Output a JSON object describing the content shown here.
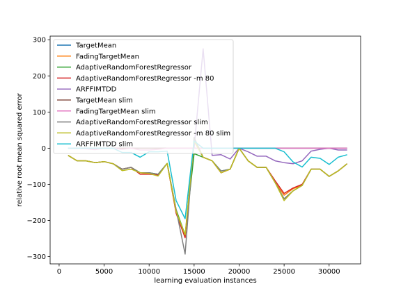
{
  "chart_data": {
    "type": "line",
    "title": "",
    "xlabel": "learning evaluation instances",
    "ylabel": "relative root mean squared error",
    "xlim": [
      -1000,
      33500
    ],
    "ylim": [
      -320,
      310
    ],
    "xticks": [
      0,
      5000,
      10000,
      15000,
      20000,
      25000,
      30000
    ],
    "yticks": [
      -300,
      -200,
      -100,
      0,
      100,
      200,
      300
    ],
    "grid": false,
    "legend_position": "top-left",
    "x": [
      1000,
      2000,
      3000,
      4000,
      5000,
      6000,
      7000,
      8000,
      9000,
      10000,
      11000,
      12000,
      13000,
      14000,
      15000,
      16000,
      17000,
      18000,
      19000,
      20000,
      21000,
      22000,
      23000,
      24000,
      25000,
      26000,
      27000,
      28000,
      29000,
      30000,
      31000,
      32000
    ],
    "series": [
      {
        "name": "TargetMean",
        "color": "#1f77b4",
        "values": [
          0,
          0,
          0,
          0,
          0,
          0,
          0,
          0,
          0,
          0,
          0,
          0,
          0,
          0,
          0,
          0,
          0,
          0,
          0,
          0,
          0,
          0,
          0,
          0,
          0,
          0,
          0,
          0,
          0,
          0,
          0,
          0
        ]
      },
      {
        "name": "FadingTargetMean",
        "color": "#ff7f0e",
        "values": [
          -20,
          -35,
          -35,
          -40,
          -37,
          -43,
          -58,
          -53,
          -68,
          -70,
          -74,
          -42,
          -175,
          -245,
          20,
          -25,
          -35,
          -68,
          -58,
          0,
          -35,
          -53,
          -53,
          -95,
          -130,
          -112,
          -103,
          -58,
          -58,
          -78,
          -63,
          -43
        ]
      },
      {
        "name": "AdaptiveRandomForestRegressor",
        "color": "#2ca02c",
        "values": [
          -20,
          -35,
          -35,
          -40,
          -37,
          -43,
          -58,
          -53,
          -68,
          -68,
          -72,
          -42,
          -170,
          -240,
          -15,
          -25,
          -35,
          -63,
          -58,
          0,
          -35,
          -53,
          -53,
          -95,
          -140,
          -118,
          -103,
          -58,
          -58,
          -78,
          -63,
          -43
        ]
      },
      {
        "name": "AdaptiveRandomForestRegressor -m 80",
        "color": "#d62728",
        "values": [
          -20,
          -35,
          -35,
          -40,
          -37,
          -43,
          -58,
          -53,
          -72,
          -72,
          -74,
          -42,
          -180,
          -248,
          20,
          -25,
          -35,
          -68,
          -58,
          0,
          -35,
          -53,
          -53,
          -90,
          -125,
          -110,
          -100,
          -58,
          -58,
          -78,
          -63,
          -43
        ]
      },
      {
        "name": "ARFFIMTDD",
        "color": "#9467bd",
        "values": [
          0,
          0,
          0,
          0,
          0,
          0,
          0,
          0,
          0,
          0,
          0,
          0,
          0,
          0,
          0,
          275,
          -20,
          -18,
          -30,
          0,
          -10,
          -22,
          -22,
          -35,
          -40,
          -43,
          -35,
          -8,
          -3,
          0,
          -5,
          -5
        ]
      },
      {
        "name": "TargetMean slim",
        "color": "#8c564b",
        "values": [
          0,
          0,
          0,
          0,
          0,
          0,
          0,
          0,
          0,
          0,
          0,
          0,
          0,
          0,
          0,
          0,
          0,
          0,
          0,
          0,
          0,
          0,
          0,
          0,
          0,
          0,
          0,
          0,
          0,
          0,
          0,
          0
        ]
      },
      {
        "name": "FadingTargetMean slim",
        "color": "#e377c2",
        "values": [
          0,
          0,
          -2,
          -4,
          0,
          0,
          -3,
          0,
          -5,
          -5,
          -3,
          0,
          0,
          0,
          0,
          0,
          0,
          0,
          0,
          0,
          0,
          0,
          0,
          0,
          0,
          0,
          0,
          0,
          0,
          0,
          0,
          0
        ]
      },
      {
        "name": "AdaptiveRandomForestRegressor slim",
        "color": "#7f7f7f",
        "values": [
          -20,
          -35,
          -35,
          -40,
          -37,
          -43,
          -58,
          -53,
          -68,
          -68,
          -72,
          -42,
          -170,
          -293,
          30,
          -25,
          -35,
          -63,
          -58,
          0,
          -35,
          -53,
          -53,
          -95,
          -140,
          -118,
          -103,
          -58,
          -58,
          -78,
          -63,
          -43
        ]
      },
      {
        "name": "AdaptiveRandomForestRegressor -m 80 slim",
        "color": "#bcbd22",
        "values": [
          -20,
          -35,
          -35,
          -40,
          -37,
          -43,
          -62,
          -58,
          -68,
          -70,
          -77,
          -42,
          -175,
          -240,
          20,
          -25,
          -35,
          -68,
          -58,
          0,
          -35,
          -53,
          -53,
          -95,
          -145,
          -118,
          -103,
          -58,
          -58,
          -78,
          -63,
          -43
        ]
      },
      {
        "name": "ARFFIMTDD slim",
        "color": "#17becf",
        "values": [
          0,
          0,
          0,
          0,
          0,
          0,
          -12,
          -12,
          -25,
          -10,
          -10,
          -8,
          -145,
          -195,
          20,
          0,
          0,
          0,
          0,
          0,
          0,
          0,
          0,
          0,
          -10,
          -38,
          -52,
          -25,
          -28,
          -45,
          -25,
          -18
        ]
      }
    ]
  }
}
